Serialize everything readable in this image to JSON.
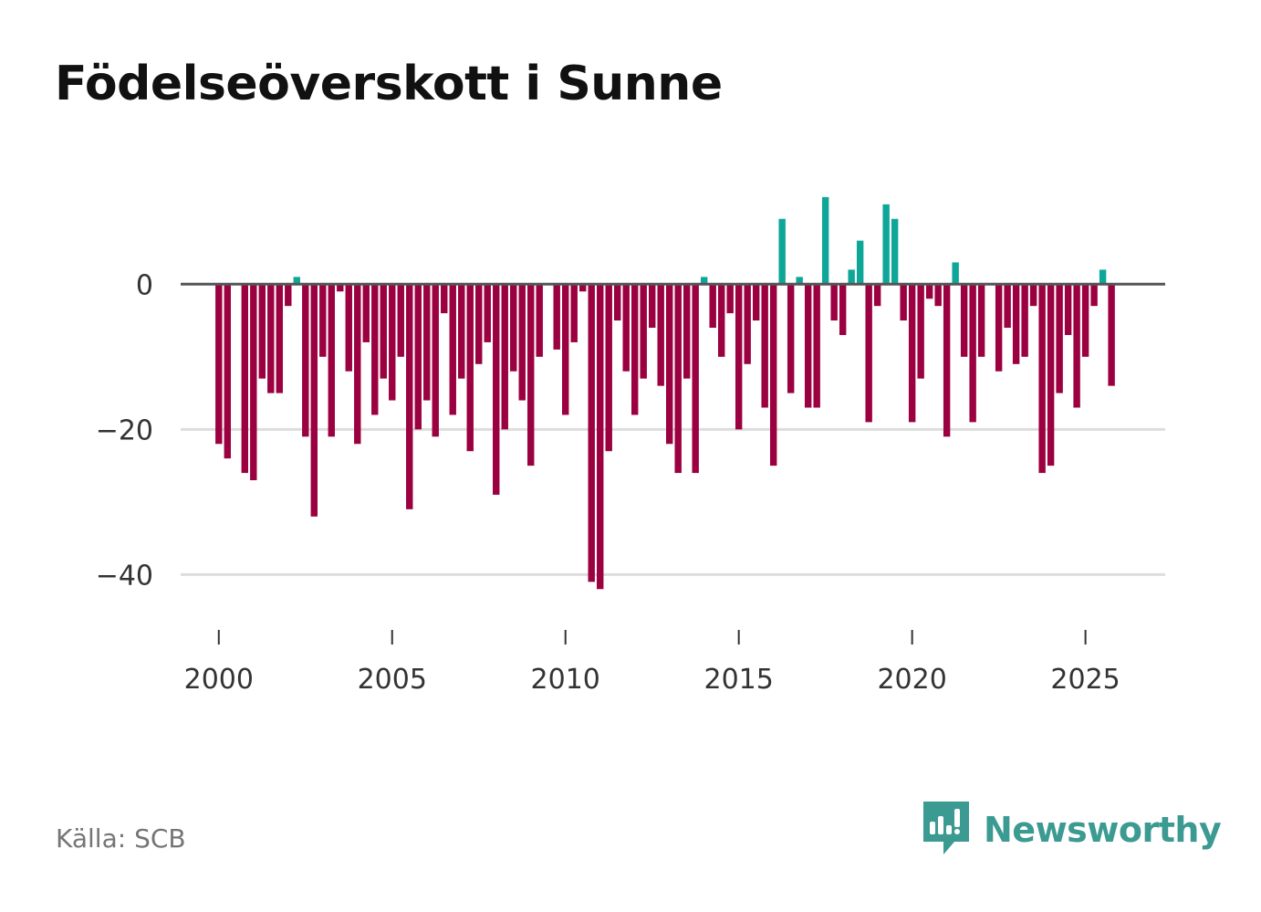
{
  "title": "Födelseöverskott i Sunne",
  "source": "Källa: SCB",
  "brand": {
    "name": "Newsworthy",
    "icon": "newsworthy-logo-icon",
    "color": "#3b9a91"
  },
  "colors": {
    "positive": "#0ea699",
    "negative": "#9b0040",
    "zero_line": "#555555",
    "grid": "#dddddd"
  },
  "chart_data": {
    "type": "bar",
    "title": "Födelseöverskott i Sunne",
    "xlabel": "",
    "ylabel": "",
    "frequency": "quarterly",
    "start": "2000 Q1",
    "xlim": [
      1998.9,
      2027.3
    ],
    "ylim": [
      -48.5,
      14.5
    ],
    "yticks": [
      0,
      -20,
      -40
    ],
    "ytick_labels": [
      "0",
      "−20",
      "−40"
    ],
    "xticks": [
      2000,
      2005,
      2010,
      2015,
      2020,
      2025
    ],
    "xtick_labels": [
      "2000",
      "2005",
      "2010",
      "2015",
      "2020",
      "2025"
    ],
    "grid": true,
    "values": [
      -22,
      -24,
      0,
      -26,
      -27,
      -13,
      -15,
      -15,
      -3,
      1,
      -21,
      -32,
      -10,
      -21,
      -1,
      -12,
      -22,
      -8,
      -18,
      -13,
      -16,
      -10,
      -31,
      -20,
      -16,
      -21,
      -4,
      -18,
      -13,
      -23,
      -11,
      -8,
      -29,
      -20,
      -12,
      -16,
      -25,
      -10,
      0,
      -9,
      -18,
      -8,
      -1,
      -41,
      -42,
      -23,
      -5,
      -12,
      -18,
      -13,
      -6,
      -14,
      -22,
      -26,
      -13,
      -26,
      1,
      -6,
      -10,
      -4,
      -20,
      -11,
      -5,
      -17,
      -25,
      9,
      -15,
      1,
      -17,
      -17,
      12,
      -5,
      -7,
      2,
      6,
      -19,
      -3,
      11,
      9,
      -5,
      -19,
      -13,
      -2,
      -3,
      -21,
      3,
      -10,
      -19,
      -10,
      0,
      -12,
      -6,
      -11,
      -10,
      -3,
      -26,
      -25,
      -15,
      -7,
      -17,
      -10,
      -3,
      2,
      -14
    ]
  }
}
